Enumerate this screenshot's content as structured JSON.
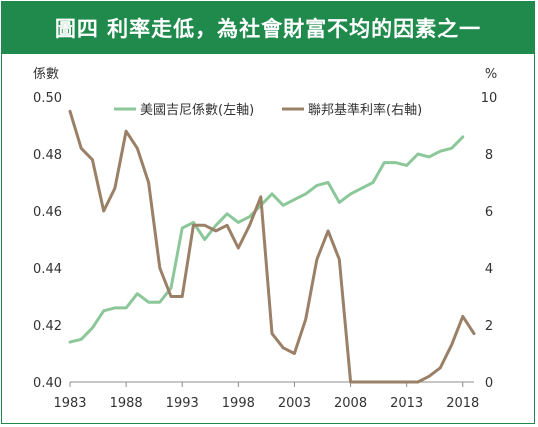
{
  "chart_data": {
    "type": "line",
    "title": "圖四 利率走低，為社會財富不均的因素之一",
    "ylabel": "係數",
    "y2label": "%",
    "ylim": [
      0.4,
      0.5
    ],
    "y2lim": [
      0,
      10
    ],
    "yticks": [
      "0.50",
      "0.48",
      "0.46",
      "0.44",
      "0.42",
      "0.40"
    ],
    "y2ticks": [
      "10",
      "8",
      "6",
      "4",
      "2",
      "0"
    ],
    "xlim": [
      1983,
      2019
    ],
    "xticks": [
      "1983",
      "1988",
      "1993",
      "1998",
      "2003",
      "2008",
      "2013",
      "2018"
    ],
    "grid": false,
    "legend_position": "top",
    "series": [
      {
        "name": "美國吉尼係數(左軸)",
        "axis": "left",
        "color": "#8cc79a",
        "x": [
          1983,
          1984,
          1985,
          1986,
          1987,
          1988,
          1989,
          1990,
          1991,
          1992,
          1993,
          1994,
          1995,
          1996,
          1997,
          1998,
          1999,
          2000,
          2001,
          2002,
          2003,
          2004,
          2005,
          2006,
          2007,
          2008,
          2009,
          2010,
          2011,
          2012,
          2013,
          2014,
          2015,
          2016,
          2017,
          2018
        ],
        "values": [
          0.414,
          0.415,
          0.419,
          0.425,
          0.426,
          0.426,
          0.431,
          0.428,
          0.428,
          0.433,
          0.454,
          0.456,
          0.45,
          0.455,
          0.459,
          0.456,
          0.458,
          0.462,
          0.466,
          0.462,
          0.464,
          0.466,
          0.469,
          0.47,
          0.463,
          0.466,
          0.468,
          0.47,
          0.477,
          0.477,
          0.476,
          0.48,
          0.479,
          0.481,
          0.482,
          0.486
        ]
      },
      {
        "name": "聯邦基準利率(右軸)",
        "axis": "right",
        "color": "#9a8067",
        "x": [
          1983,
          1984,
          1985,
          1986,
          1987,
          1988,
          1989,
          1990,
          1991,
          1992,
          1993,
          1994,
          1995,
          1996,
          1997,
          1998,
          1999,
          2000,
          2001,
          2002,
          2003,
          2004,
          2005,
          2006,
          2007,
          2008,
          2009,
          2010,
          2011,
          2012,
          2013,
          2014,
          2015,
          2016,
          2017,
          2018,
          2019
        ],
        "values": [
          9.5,
          8.2,
          7.8,
          6.0,
          6.8,
          8.8,
          8.2,
          7.0,
          4.0,
          3.0,
          3.0,
          5.5,
          5.5,
          5.3,
          5.5,
          4.7,
          5.5,
          6.5,
          1.7,
          1.2,
          1.0,
          2.2,
          4.3,
          5.3,
          4.3,
          0.0,
          0.0,
          0.0,
          0.0,
          0.0,
          0.0,
          0.0,
          0.2,
          0.5,
          1.3,
          2.3,
          1.7
        ]
      }
    ]
  }
}
